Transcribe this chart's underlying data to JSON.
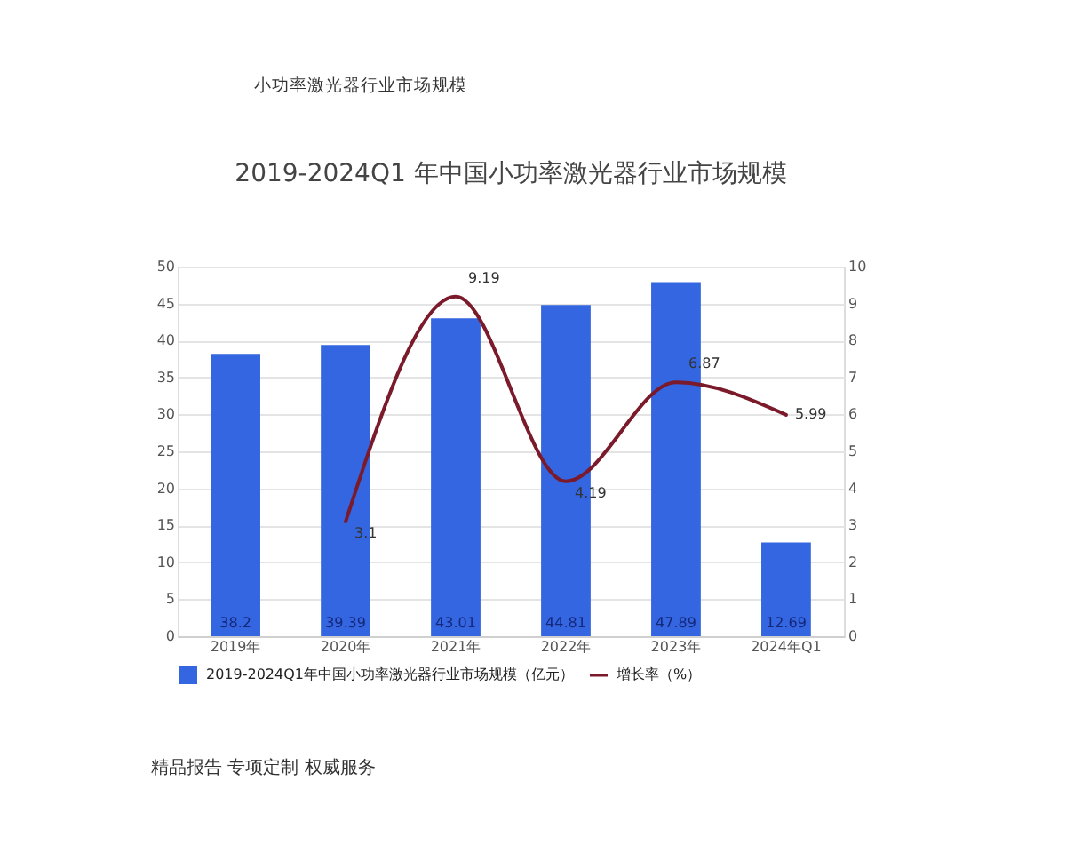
{
  "chart_data": {
    "type": "bar",
    "title": "2019-2024Q1 年中国小功率激光器行业市场规模",
    "categories": [
      "2019年",
      "2020年",
      "2021年",
      "2022年",
      "2023年",
      "2024年Q1"
    ],
    "series": [
      {
        "name": "2019-2024Q1年中国小功率激光器行业市场规模（亿元）",
        "color": "#3366e0",
        "values": [
          38.2,
          39.39,
          43.01,
          44.81,
          47.89,
          12.69
        ]
      },
      {
        "name": "增长率（%）",
        "type": "line",
        "axis": "y2",
        "color": "#7a1a2a",
        "values": [
          null,
          3.1,
          9.19,
          4.19,
          6.87,
          5.99
        ]
      }
    ],
    "ylim": [
      0,
      50
    ],
    "yticks": [
      0,
      5,
      10,
      15,
      20,
      25,
      30,
      35,
      40,
      45,
      50
    ],
    "y2lim": [
      0,
      10
    ],
    "y2ticks": [
      0,
      1,
      2,
      3,
      4,
      5,
      6,
      7,
      8,
      9,
      10
    ],
    "grid": "y",
    "legend": "bottom",
    "data_labels": true,
    "annotations": [
      "小功率激光器行业市场规模",
      "精品报告 专项定制 权威服务"
    ]
  }
}
